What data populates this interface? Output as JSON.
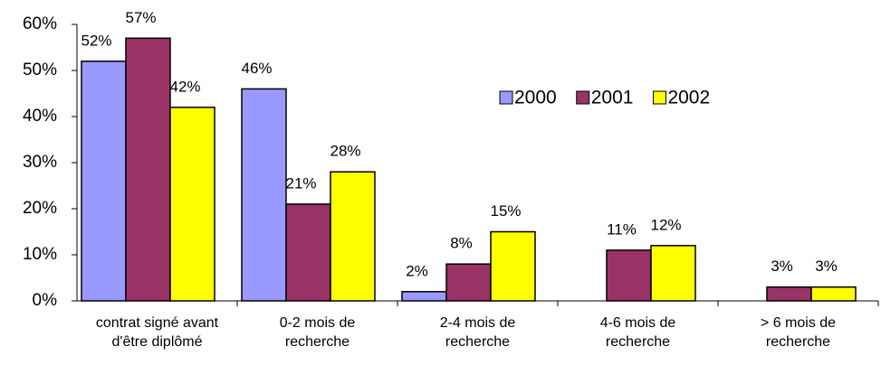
{
  "chart_data": {
    "type": "bar",
    "categories": [
      "contrat signé avant d'être diplômé",
      "0-2 mois de recherche",
      "2-4 mois de recherche",
      "4-6 mois de recherche",
      "> 6 mois de recherche"
    ],
    "series": [
      {
        "name": "2000",
        "color": "#9999ff",
        "values": [
          52,
          46,
          2,
          null,
          null
        ],
        "value_labels": [
          "52%",
          "46%",
          "2%",
          null,
          null
        ]
      },
      {
        "name": "2001",
        "color": "#993366",
        "values": [
          57,
          21,
          8,
          11,
          3
        ],
        "value_labels": [
          "57%",
          "21%",
          "8%",
          "11%",
          "3%"
        ]
      },
      {
        "name": "2002",
        "color": "#ffff00",
        "values": [
          42,
          28,
          15,
          12,
          3
        ],
        "value_labels": [
          "42%",
          "28%",
          "15%",
          "12%",
          "3%"
        ]
      }
    ],
    "ylim": [
      0,
      60
    ],
    "yticks": [
      {
        "value": 0,
        "label": "0%"
      },
      {
        "value": 10,
        "label": "10%"
      },
      {
        "value": 20,
        "label": "20%"
      },
      {
        "value": 30,
        "label": "30%"
      },
      {
        "value": 40,
        "label": "40%"
      },
      {
        "value": 50,
        "label": "50%"
      },
      {
        "value": 60,
        "label": "60%"
      }
    ],
    "legend": "top-right"
  }
}
